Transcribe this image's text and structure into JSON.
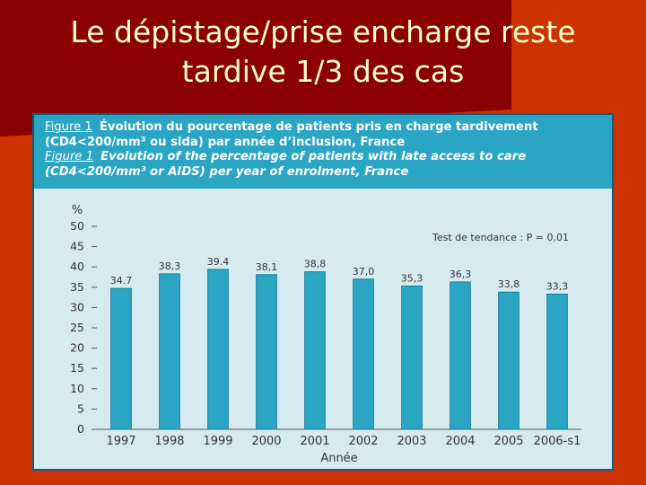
{
  "slide": {
    "title": "Le dépistage/prise encharge reste tardive 1/3 des cas",
    "colors": {
      "background": "#cc3300",
      "accent": "#8b0000",
      "title_text": "#ffffcc"
    }
  },
  "figure": {
    "caption_fr_label": "Figure 1",
    "caption_fr_line1": "Évolution du pourcentage de patients pris en charge tardivement",
    "caption_fr_line2": "(CD4<200/mm³ ou sida) par année d’inclusion, France",
    "caption_en_label": "Figure 1",
    "caption_en_line1": "Evolution of the percentage of patients with late access to care",
    "caption_en_line2": "(CD4<200/mm³ or AIDS) per year of enrolment, France",
    "colors": {
      "caption_bg": "#2aa6c4",
      "plot_bg": "#d6ebf0",
      "bar": "#2aa6c4",
      "bar_edge": "#1a7d95"
    }
  },
  "chart_data": {
    "type": "bar",
    "title": "Évolution du pourcentage de patients pris en charge tardivement",
    "xlabel": "Année",
    "ylabel": "%",
    "ylim": [
      0,
      50
    ],
    "yticks": [
      0,
      5,
      10,
      15,
      20,
      25,
      30,
      35,
      40,
      45,
      50
    ],
    "categories": [
      "1997",
      "1998",
      "1999",
      "2000",
      "2001",
      "2002",
      "2003",
      "2004",
      "2005",
      "2006-s1"
    ],
    "values": [
      34.7,
      38.3,
      39.4,
      38.1,
      38.8,
      37.0,
      35.3,
      36.3,
      33.8,
      33.3
    ],
    "data_labels": [
      "34.7",
      "38,3",
      "39.4",
      "38,1",
      "38,8",
      "37,0",
      "35,3",
      "36,3",
      "33,8",
      "33,3"
    ],
    "annotation": "Test de tendance : P = 0,01",
    "grid": false
  }
}
